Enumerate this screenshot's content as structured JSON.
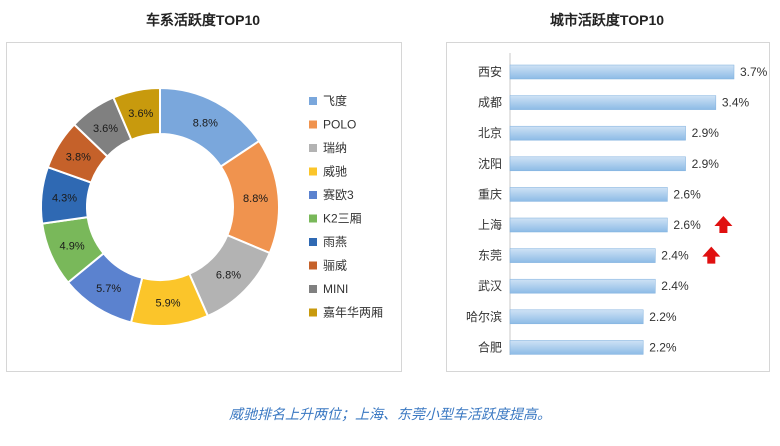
{
  "charts": {
    "left_title": "车系活跃度TOP10",
    "right_title": "城市活跃度TOP10"
  },
  "caption": "威驰排名上升两位；上海、东莞小型车活跃度提高。",
  "chart_data": [
    {
      "type": "pie",
      "title": "车系活跃度TOP10",
      "legend": "right",
      "slices": [
        {
          "label": "飞度",
          "value": 8.8,
          "display": "8.8%",
          "color": "#7aa7dc"
        },
        {
          "label": "POLO",
          "value": 8.8,
          "display": "8.8%",
          "color": "#f0934e"
        },
        {
          "label": "瑞纳",
          "value": 6.8,
          "display": "6.8%",
          "color": "#b3b3b3"
        },
        {
          "label": "威驰",
          "value": 5.9,
          "display": "5.9%",
          "color": "#fbc52a"
        },
        {
          "label": "赛欧3",
          "value": 5.7,
          "display": "5.7%",
          "color": "#5b82cf"
        },
        {
          "label": "K2三厢",
          "value": 4.9,
          "display": "4.9%",
          "color": "#79b85a"
        },
        {
          "label": "雨燕",
          "value": 4.3,
          "display": "4.3%",
          "color": "#2f69b3"
        },
        {
          "label": "骊威",
          "value": 3.8,
          "display": "3.8%",
          "color": "#c5612a"
        },
        {
          "label": "MINI",
          "value": 3.6,
          "display": "3.6%",
          "color": "#808080"
        },
        {
          "label": "嘉年华两厢",
          "value": 3.6,
          "display": "3.6%",
          "color": "#c89a0d"
        }
      ]
    },
    {
      "type": "bar",
      "orientation": "horizontal",
      "title": "城市活跃度TOP10",
      "categories": [
        "西安",
        "成都",
        "北京",
        "沈阳",
        "重庆",
        "上海",
        "东莞",
        "武汉",
        "哈尔滨",
        "合肥"
      ],
      "values": [
        3.7,
        3.4,
        2.9,
        2.9,
        2.6,
        2.6,
        2.4,
        2.4,
        2.2,
        2.2
      ],
      "value_labels": [
        "3.7%",
        "3.4%",
        "2.9%",
        "2.9%",
        "2.6%",
        "2.6%",
        "2.4%",
        "2.4%",
        "2.2%",
        "2.2%"
      ],
      "xlim": [
        0,
        3.7
      ],
      "grid": false,
      "bar_color": "#8dbbe6",
      "rising": [
        "上海",
        "东莞"
      ],
      "arrow_color": "#e01010"
    }
  ]
}
